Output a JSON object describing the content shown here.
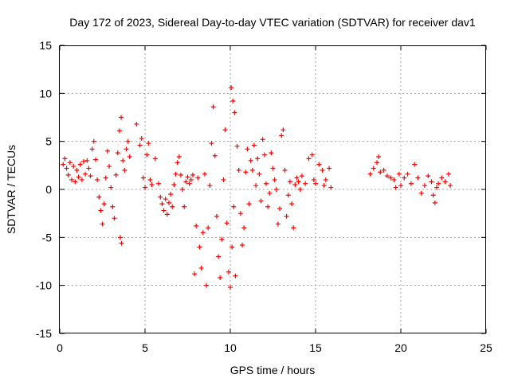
{
  "chart_data": {
    "type": "scatter",
    "title": "Day 172 of 2023, Sidereal Day-to-day VTEC variation (SDTVAR) for receiver dav1",
    "xlabel": "GPS time / hours",
    "ylabel": "SDTVAR / TECUs",
    "xlim": [
      0,
      25
    ],
    "ylim": [
      -15,
      15
    ],
    "xticks": [
      0,
      5,
      10,
      15,
      20,
      25
    ],
    "yticks": [
      -15,
      -10,
      -5,
      0,
      5,
      10,
      15
    ],
    "xtick_labels": [
      "0",
      "5",
      "10",
      "15",
      "20",
      "25"
    ],
    "ytick_labels": [
      "-15",
      "-10",
      "-5",
      "0",
      "5",
      "10",
      "15"
    ],
    "grid": true,
    "marker": "plus",
    "color": "#ff0000",
    "series": [
      {
        "name": "SDTVAR",
        "points": [
          [
            0.2,
            2.6
          ],
          [
            0.3,
            3.2
          ],
          [
            0.4,
            2.2
          ],
          [
            0.5,
            1.5
          ],
          [
            0.6,
            2.8
          ],
          [
            0.7,
            1.0
          ],
          [
            0.8,
            2.4
          ],
          [
            0.9,
            0.8
          ],
          [
            1.0,
            2.0
          ],
          [
            1.1,
            1.3
          ],
          [
            1.2,
            2.6
          ],
          [
            1.3,
            1.0
          ],
          [
            1.4,
            2.9
          ],
          [
            1.5,
            1.6
          ],
          [
            1.6,
            3.0
          ],
          [
            1.7,
            2.2
          ],
          [
            1.8,
            1.4
          ],
          [
            1.9,
            4.2
          ],
          [
            2.0,
            5.0
          ],
          [
            2.1,
            3.1
          ],
          [
            2.2,
            1.0
          ],
          [
            2.3,
            -0.8
          ],
          [
            2.4,
            -2.2
          ],
          [
            2.5,
            -3.6
          ],
          [
            2.6,
            -1.5
          ],
          [
            2.7,
            1.2
          ],
          [
            2.8,
            4.0
          ],
          [
            2.9,
            2.4
          ],
          [
            3.0,
            0.2
          ],
          [
            3.1,
            -1.8
          ],
          [
            3.2,
            -3.0
          ],
          [
            3.3,
            1.5
          ],
          [
            3.4,
            3.8
          ],
          [
            3.5,
            6.1
          ],
          [
            3.55,
            -5.0
          ],
          [
            3.6,
            7.5
          ],
          [
            3.62,
            -5.6
          ],
          [
            3.7,
            3.0
          ],
          [
            3.8,
            2.0
          ],
          [
            3.9,
            4.2
          ],
          [
            4.0,
            5.0
          ],
          [
            4.1,
            3.4
          ],
          [
            4.5,
            6.8
          ],
          [
            4.7,
            4.6
          ],
          [
            4.8,
            5.3
          ],
          [
            4.9,
            1.2
          ],
          [
            5.0,
            0.2
          ],
          [
            5.1,
            3.6
          ],
          [
            5.2,
            4.8
          ],
          [
            5.3,
            1.0
          ],
          [
            5.4,
            0.5
          ],
          [
            5.6,
            3.2
          ],
          [
            5.8,
            0.6
          ],
          [
            5.9,
            -0.8
          ],
          [
            6.0,
            -1.5
          ],
          [
            6.1,
            -2.2
          ],
          [
            6.2,
            -1.0
          ],
          [
            6.3,
            -2.6
          ],
          [
            6.4,
            -1.4
          ],
          [
            6.5,
            -0.5
          ],
          [
            6.6,
            -1.8
          ],
          [
            6.7,
            0.5
          ],
          [
            6.8,
            1.6
          ],
          [
            6.9,
            2.8
          ],
          [
            7.0,
            3.4
          ],
          [
            7.1,
            1.5
          ],
          [
            7.2,
            0.0
          ],
          [
            7.3,
            -1.8
          ],
          [
            7.4,
            0.8
          ],
          [
            7.5,
            1.3
          ],
          [
            7.6,
            0.6
          ],
          [
            7.7,
            1.0
          ],
          [
            7.8,
            1.5
          ],
          [
            7.9,
            -8.8
          ],
          [
            8.0,
            -3.8
          ],
          [
            8.1,
            1.2
          ],
          [
            8.2,
            -6.0
          ],
          [
            8.3,
            -8.2
          ],
          [
            8.4,
            -4.5
          ],
          [
            8.5,
            1.6
          ],
          [
            8.6,
            -10.0
          ],
          [
            8.7,
            -4.0
          ],
          [
            8.8,
            0.4
          ],
          [
            8.9,
            4.8
          ],
          [
            9.0,
            8.6
          ],
          [
            9.1,
            3.5
          ],
          [
            9.2,
            -2.8
          ],
          [
            9.3,
            -7.0
          ],
          [
            9.4,
            -9.2
          ],
          [
            9.5,
            -5.2
          ],
          [
            9.6,
            1.0
          ],
          [
            9.7,
            6.2
          ],
          [
            9.8,
            -3.5
          ],
          [
            9.9,
            -8.6
          ],
          [
            10.0,
            -10.2
          ],
          [
            10.05,
            10.6
          ],
          [
            10.1,
            -6.0
          ],
          [
            10.15,
            9.2
          ],
          [
            10.2,
            -1.8
          ],
          [
            10.25,
            8.0
          ],
          [
            10.3,
            -9.0
          ],
          [
            10.4,
            4.5
          ],
          [
            10.5,
            2.0
          ],
          [
            10.6,
            -2.5
          ],
          [
            10.7,
            -5.8
          ],
          [
            10.8,
            -4.0
          ],
          [
            10.9,
            1.8
          ],
          [
            11.0,
            4.2
          ],
          [
            11.1,
            -1.5
          ],
          [
            11.2,
            3.0
          ],
          [
            11.3,
            2.0
          ],
          [
            11.4,
            4.6
          ],
          [
            11.5,
            0.4
          ],
          [
            11.6,
            3.2
          ],
          [
            11.7,
            1.6
          ],
          [
            11.8,
            -1.2
          ],
          [
            11.9,
            5.2
          ],
          [
            12.0,
            3.6
          ],
          [
            12.1,
            0.6
          ],
          [
            12.2,
            -1.8
          ],
          [
            12.3,
            -0.4
          ],
          [
            12.4,
            3.8
          ],
          [
            12.5,
            2.2
          ],
          [
            12.6,
            1.0
          ],
          [
            12.7,
            0.0
          ],
          [
            12.8,
            -3.6
          ],
          [
            12.9,
            -2.0
          ],
          [
            13.0,
            5.6
          ],
          [
            13.1,
            6.2
          ],
          [
            13.2,
            2.0
          ],
          [
            13.3,
            -2.8
          ],
          [
            13.4,
            -0.6
          ],
          [
            13.5,
            0.8
          ],
          [
            13.6,
            -1.5
          ],
          [
            13.7,
            -4.0
          ],
          [
            13.8,
            0.5
          ],
          [
            13.9,
            1.2
          ],
          [
            14.0,
            0.8
          ],
          [
            14.1,
            0.0
          ],
          [
            14.2,
            1.4
          ],
          [
            14.4,
            0.6
          ],
          [
            14.6,
            3.2
          ],
          [
            14.8,
            3.6
          ],
          [
            14.9,
            1.0
          ],
          [
            15.0,
            0.6
          ],
          [
            15.2,
            2.6
          ],
          [
            15.4,
            2.0
          ],
          [
            15.5,
            0.4
          ],
          [
            15.6,
            1.0
          ],
          [
            15.8,
            2.2
          ],
          [
            15.9,
            0.2
          ],
          [
            18.2,
            1.6
          ],
          [
            18.4,
            2.2
          ],
          [
            18.6,
            2.8
          ],
          [
            18.7,
            3.4
          ],
          [
            18.8,
            1.8
          ],
          [
            19.0,
            2.0
          ],
          [
            19.2,
            1.4
          ],
          [
            19.4,
            1.2
          ],
          [
            19.6,
            1.0
          ],
          [
            19.7,
            0.2
          ],
          [
            19.9,
            1.6
          ],
          [
            20.0,
            0.4
          ],
          [
            20.2,
            1.2
          ],
          [
            20.4,
            1.6
          ],
          [
            20.6,
            0.6
          ],
          [
            20.8,
            2.6
          ],
          [
            21.0,
            1.2
          ],
          [
            21.2,
            -0.4
          ],
          [
            21.4,
            0.4
          ],
          [
            21.6,
            1.4
          ],
          [
            21.8,
            0.8
          ],
          [
            21.9,
            -0.6
          ],
          [
            22.0,
            -1.4
          ],
          [
            22.1,
            0.2
          ],
          [
            22.2,
            0.6
          ],
          [
            22.4,
            1.2
          ],
          [
            22.6,
            0.8
          ],
          [
            22.8,
            1.6
          ],
          [
            22.9,
            0.4
          ]
        ]
      }
    ]
  }
}
